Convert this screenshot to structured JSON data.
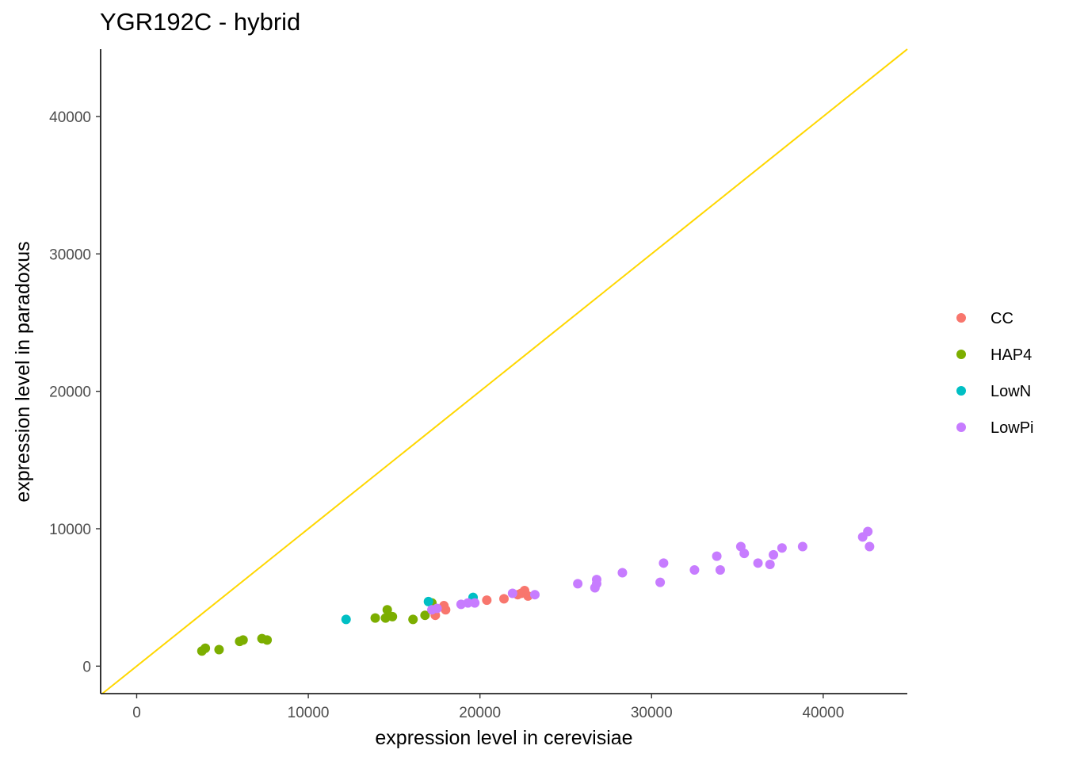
{
  "chart_data": {
    "type": "scatter",
    "title": "YGR192C - hybrid",
    "xlabel": "expression level in cerevisiae",
    "ylabel": "expression level in paradoxus",
    "xlim": [
      -2100,
      44900
    ],
    "ylim": [
      -2000,
      44900
    ],
    "xticks": [
      0,
      10000,
      20000,
      30000,
      40000
    ],
    "yticks": [
      0,
      10000,
      20000,
      30000,
      40000
    ],
    "grid": false,
    "legend_position": "right",
    "reference_line": {
      "type": "identity",
      "slope": 1,
      "intercept": 0,
      "color": "#FFD700"
    },
    "series": [
      {
        "name": "CC",
        "color": "#F8766D",
        "points": [
          [
            17400,
            3700
          ],
          [
            17900,
            4400
          ],
          [
            18000,
            4100
          ],
          [
            20400,
            4800
          ],
          [
            21400,
            4900
          ],
          [
            22200,
            5200
          ],
          [
            22400,
            5300
          ],
          [
            22600,
            5500
          ],
          [
            22800,
            5100
          ]
        ]
      },
      {
        "name": "HAP4",
        "color": "#7CAE00",
        "points": [
          [
            3800,
            1100
          ],
          [
            4000,
            1300
          ],
          [
            4800,
            1200
          ],
          [
            6000,
            1800
          ],
          [
            6200,
            1900
          ],
          [
            7300,
            2000
          ],
          [
            7600,
            1900
          ],
          [
            13900,
            3500
          ],
          [
            14500,
            3500
          ],
          [
            14600,
            4100
          ],
          [
            14900,
            3600
          ],
          [
            16100,
            3400
          ],
          [
            16800,
            3700
          ],
          [
            17200,
            4600
          ]
        ]
      },
      {
        "name": "LowN",
        "color": "#00BFC4",
        "points": [
          [
            12200,
            3400
          ],
          [
            17000,
            4700
          ],
          [
            19600,
            5000
          ]
        ]
      },
      {
        "name": "LowPi",
        "color": "#C77CFF",
        "points": [
          [
            17200,
            4100
          ],
          [
            17500,
            4200
          ],
          [
            18900,
            4500
          ],
          [
            19300,
            4600
          ],
          [
            19700,
            4600
          ],
          [
            21900,
            5300
          ],
          [
            23200,
            5200
          ],
          [
            25700,
            6000
          ],
          [
            26700,
            5700
          ],
          [
            26800,
            6000
          ],
          [
            26800,
            6300
          ],
          [
            28300,
            6800
          ],
          [
            30500,
            6100
          ],
          [
            30700,
            7500
          ],
          [
            32500,
            7000
          ],
          [
            33800,
            8000
          ],
          [
            34000,
            7000
          ],
          [
            35200,
            8700
          ],
          [
            35400,
            8200
          ],
          [
            36200,
            7500
          ],
          [
            36900,
            7400
          ],
          [
            37100,
            8100
          ],
          [
            37600,
            8600
          ],
          [
            38800,
            8700
          ],
          [
            42300,
            9400
          ],
          [
            42600,
            9800
          ],
          [
            42700,
            8700
          ]
        ]
      }
    ]
  }
}
